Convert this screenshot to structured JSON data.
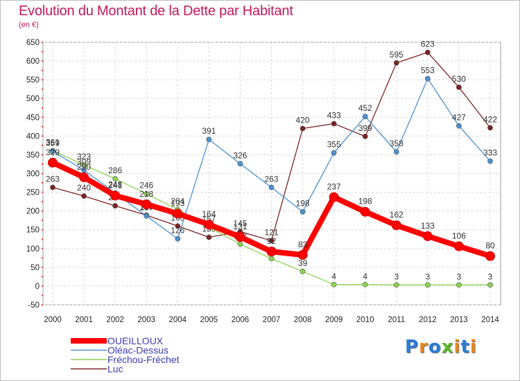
{
  "title": "Evolution du Montant de la Dette par Habitant",
  "unit": "(en €)",
  "brand": {
    "text": "Proxiti",
    "colors": [
      "#2e7bd6",
      "#e8861a",
      "#2e7bd6",
      "#5bb82b",
      "#e8861a",
      "#2e7bd6",
      "#e8861a"
    ]
  },
  "chart_data": {
    "type": "line",
    "title": "Evolution du Montant de la Dette par Habitant",
    "ylabel": "(en €)",
    "xlabel": "",
    "x": [
      "2000",
      "2001",
      "2002",
      "2003",
      "2004",
      "2005",
      "2006",
      "2007",
      "2008",
      "2009",
      "2010",
      "2011",
      "2012",
      "2013",
      "2014"
    ],
    "ylim": [
      -50,
      650
    ],
    "yticks": [
      -50,
      0,
      50,
      100,
      150,
      200,
      250,
      300,
      350,
      400,
      450,
      500,
      550,
      600,
      650
    ],
    "grid": true,
    "legend": "bottom-left",
    "series": [
      {
        "name": "Luc",
        "color": "#7b2323",
        "values": [
          263,
          240,
          214,
          189,
          160,
          130,
          145,
          121,
          420,
          433,
          399,
          595,
          623,
          530,
          422
        ],
        "labels": [
          "263",
          "240",
          "214",
          "189",
          "160",
          "130",
          "145",
          "121",
          "420",
          "433",
          "399",
          "595",
          "623",
          "530",
          "422"
        ]
      },
      {
        "name": "Fréchou-Fréchet",
        "color": "#8ed250",
        "values": [
          361,
          323,
          286,
          246,
          204,
          157,
          112,
          73,
          39,
          4,
          4,
          3,
          3,
          3,
          3
        ],
        "labels": [
          "361",
          "323",
          "286",
          "246",
          "204",
          "157",
          "112",
          "73",
          "39",
          "4",
          "4",
          "3",
          "3",
          "3",
          "3"
        ]
      },
      {
        "name": "Oléac-Dessus",
        "color": "#4a90d0",
        "values": [
          359,
          309,
          248,
          187,
          126,
          391,
          326,
          263,
          198,
          355,
          452,
          358,
          553,
          427,
          333
        ],
        "labels": [
          "359",
          "309",
          "248",
          "187",
          "126",
          "391",
          "326",
          "263",
          "198",
          "355",
          "452",
          "358",
          "553",
          "427",
          "333"
        ]
      },
      {
        "name": "OUEILLOUX",
        "color": "#ff0000",
        "values": [
          329,
          290,
          241,
          218,
          193,
          164,
          131,
          92,
          83,
          237,
          198,
          162,
          133,
          106,
          80
        ],
        "labels": [
          "329",
          "290",
          "241",
          "218",
          "193",
          "164",
          "131",
          "92",
          "83",
          "237",
          "198",
          "162",
          "133",
          "106",
          "80"
        ]
      }
    ],
    "legend_order": [
      "OUEILLOUX",
      "Oléac-Dessus",
      "Fréchou-Fréchet",
      "Luc"
    ]
  }
}
